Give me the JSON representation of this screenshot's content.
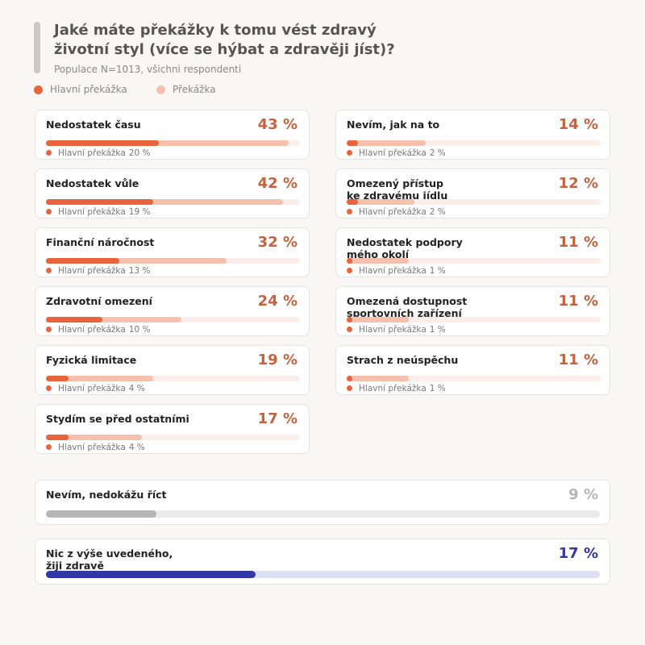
{
  "chart_data": [
    {
      "type": "bar",
      "title": "Jaké máte překážky k tomu vést zdravý\nživotní styl (více se hýbat a zdravěji jíst)?",
      "subtitle": "Populace N=1013, všichni respondenti",
      "categories": [
        "Nedostatek času",
        "Nedostatek vůle",
        "Finanční náročnost",
        "Zdravotní omezení",
        "Fyzická limitace",
        "Stydím se před ostatními",
        "Nevím, jak na to",
        "Omezený přístup\nke zdravému jídlu",
        "Nedostatek podpory\nmého okolí",
        "Omezená dostupnost\nsportovních zařízení",
        "Strach z neúspěchu"
      ],
      "series": [
        {
          "name": "Hlavní překážka",
          "color": "#e8643c",
          "values": [
            20,
            19,
            13,
            10,
            4,
            4,
            2,
            2,
            1,
            1,
            1
          ],
          "value_labels": [
            "20 %",
            "19 %",
            "13 %",
            "10 %",
            "4 %",
            "4 %",
            "2 %",
            "2 %",
            "1 %",
            "1 %",
            "1 %"
          ]
        },
        {
          "name": "Překážka",
          "color": "#f5c0ae",
          "values": [
            43,
            42,
            32,
            24,
            19,
            17,
            14,
            12,
            11,
            11,
            11
          ],
          "value_labels": [
            "43 %",
            "42 %",
            "32 %",
            "24 %",
            "19 %",
            "17 %",
            "14 %",
            "12 %",
            "11 %",
            "11 %",
            "11 %"
          ]
        }
      ],
      "value_color": "#c4623e",
      "track_color": "#fbeee9",
      "xlim": [
        0,
        45
      ]
    },
    {
      "type": "bar",
      "categories": [
        "Nevím, nedokážu říct",
        "Nic z výše uvedeného,\nžiji zdravě"
      ],
      "values": [
        9,
        17
      ],
      "value_labels": [
        "9 %",
        "17 %"
      ],
      "colors": [
        "#b5b5b5",
        "#3237a8"
      ],
      "track_colors": [
        "#ebebeb",
        "#dddff3"
      ],
      "xlim": [
        0,
        45
      ]
    }
  ]
}
